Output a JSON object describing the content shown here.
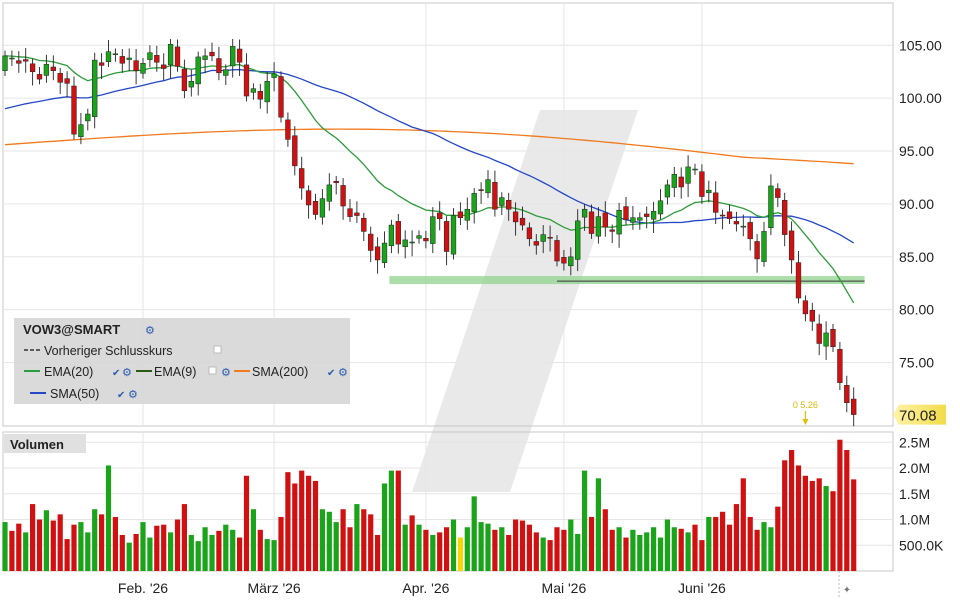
{
  "colors": {
    "up": "#1aa41a",
    "down": "#d11111",
    "neutral_volume": "#f5d800",
    "ema20": "#2d9c3a",
    "ema9": "#2b5a13",
    "sma200": "#f07a1e",
    "sma50": "#2448c8",
    "support": "#8fd38f",
    "last_price_bg": "#f7e76a",
    "watermark": "#e2e2e2",
    "legend_bg": "#d6d6d6"
  },
  "chart_data": {
    "type": "candlestick",
    "symbol": "VOW3@SMART",
    "price_axis": {
      "ticks": [
        "105.00",
        "100.00",
        "95.00",
        "90.00",
        "85.00",
        "80.00",
        "75.00"
      ],
      "range": [
        69,
        109
      ]
    },
    "volume_axis": {
      "ticks": [
        "2.5M",
        "2.0M",
        "1.5M",
        "1.0M",
        "500.0K"
      ],
      "range": [
        0,
        2.7
      ]
    },
    "x_labels": [
      {
        "label": "Feb. '26",
        "index": 20
      },
      {
        "label": "März '26",
        "index": 39
      },
      {
        "label": "Apr. '26",
        "index": 61
      },
      {
        "label": "Mai '26",
        "index": 81
      },
      {
        "label": "Juni '26",
        "index": 101
      }
    ],
    "last_price": "70.08",
    "event_marker": {
      "label": "0 5.26",
      "index": 116
    },
    "legend": {
      "title": "VOW3@SMART",
      "items": [
        "Vorheriger Schlusskurs",
        "EMA(20)",
        "EMA(9)",
        "SMA(200)",
        "SMA(50)"
      ]
    },
    "volume_title": "Volumen",
    "support_line": {
      "price": 82.8,
      "from_index": 56,
      "to_index": 124
    },
    "close": [
      104,
      103.8,
      103.3,
      103.5,
      102.5,
      101.8,
      103.2,
      102.6,
      101.5,
      101.4,
      96.6,
      97.5,
      98.5,
      103.6,
      103.1,
      104.4,
      104.2,
      103.3,
      103.8,
      102.6,
      103.3,
      104.3,
      103.4,
      102.8,
      105.1,
      103.0,
      100.7,
      101.6,
      103.9,
      104.0,
      104.0,
      102.4,
      102.7,
      104.9,
      103.4,
      100.2,
      100.9,
      99.9,
      101.6,
      102.3,
      98.2,
      96.1,
      93.6,
      91.5,
      89.9,
      89.0,
      90.5,
      91.8,
      92.0,
      89.8,
      88.8,
      88.9,
      87.4,
      85.6,
      84.7,
      86.3,
      88.0,
      86.2,
      86.6,
      86.4,
      87.0,
      86.5,
      88.8,
      88.6,
      85.5,
      88.9,
      88.7,
      89.5,
      91.0,
      91.3,
      92.3,
      89.5,
      90.6,
      89.5,
      88.3,
      88.0,
      86.7,
      86.1,
      87.1,
      86.8,
      84.6,
      84.4,
      85.0,
      88.4,
      89.5,
      87.2,
      88.8,
      87.8,
      87.4,
      89.4,
      88.5,
      88.7,
      88.7,
      88.8,
      89.3,
      90.3,
      91.8,
      92.8,
      91.6,
      93.5,
      93.3,
      90.7,
      91.3,
      89.2,
      88.9,
      88.6,
      88.1,
      87.9,
      86.7,
      84.8,
      87.4,
      91.7,
      90.6,
      87.1,
      84.7,
      81.1,
      79.6,
      78.9,
      76.8,
      77.8,
      76.5,
      73.1,
      71.2,
      70.08
    ],
    "volume": [
      0.95,
      0.78,
      0.92,
      0.75,
      1.3,
      1.0,
      1.18,
      0.98,
      1.1,
      0.62,
      0.9,
      0.95,
      0.75,
      1.2,
      1.1,
      2.05,
      1.05,
      0.7,
      0.55,
      0.72,
      0.95,
      0.65,
      0.88,
      0.9,
      0.75,
      1.0,
      1.3,
      0.7,
      0.58,
      0.85,
      0.7,
      0.78,
      0.9,
      0.8,
      0.65,
      1.85,
      1.2,
      0.8,
      0.62,
      0.6,
      1.05,
      1.92,
      1.7,
      1.95,
      1.85,
      1.75,
      1.2,
      1.15,
      0.95,
      1.2,
      0.85,
      1.3,
      1.2,
      1.1,
      0.7,
      1.7,
      1.95,
      1.95,
      0.9,
      1.08,
      0.9,
      0.8,
      0.7,
      0.75,
      0.85,
      1.0,
      0.65,
      0.85,
      1.45,
      0.95,
      0.92,
      0.8,
      0.85,
      0.7,
      1.0,
      0.98,
      0.9,
      0.75,
      0.65,
      0.6,
      0.85,
      0.8,
      1.0,
      0.72,
      1.95,
      1.05,
      1.8,
      1.2,
      0.8,
      0.85,
      0.65,
      0.8,
      0.7,
      0.75,
      0.85,
      0.65,
      1.0,
      0.85,
      0.82,
      0.75,
      0.9,
      0.6,
      1.05,
      1.05,
      1.15,
      0.9,
      1.3,
      1.8,
      1.05,
      0.8,
      0.95,
      0.85,
      1.25,
      2.15,
      2.35,
      2.05,
      1.85,
      1.75,
      1.8,
      1.65,
      1.55,
      2.55,
      2.35,
      1.78
    ]
  }
}
